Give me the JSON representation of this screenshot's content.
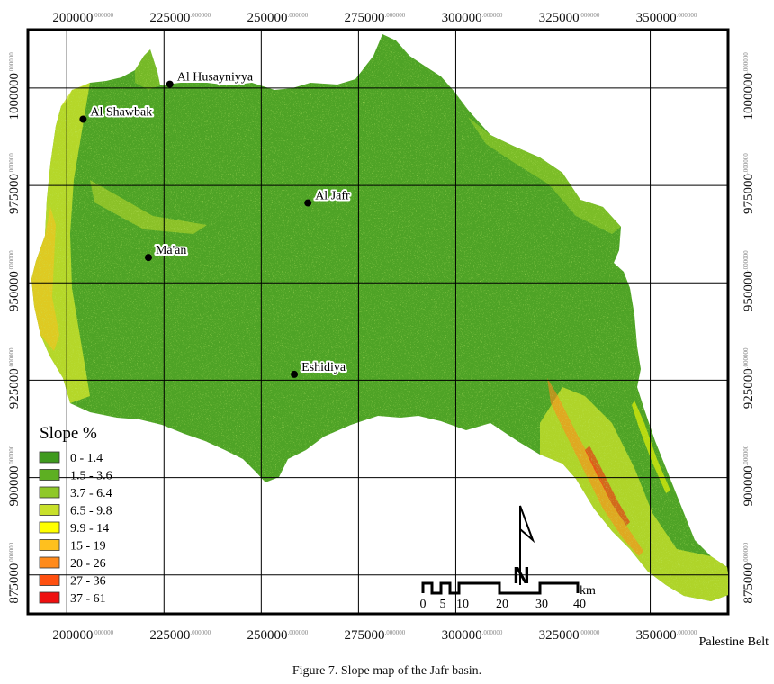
{
  "map": {
    "x_ticks": [
      200000,
      225000,
      250000,
      275000,
      300000,
      325000,
      350000
    ],
    "y_ticks": [
      1000000,
      975000,
      950000,
      925000,
      900000,
      875000
    ],
    "x_tick_labels": [
      "200000",
      "225000",
      "250000",
      "275000",
      "300000",
      "325000",
      "350000"
    ],
    "y_tick_labels": [
      "1000000",
      "975000",
      "950000",
      "925000",
      "900000",
      "875000"
    ],
    "tick_superscript": ".000000",
    "places": [
      {
        "name": "Al Husayniyya",
        "x": 226500,
        "y": 1001000
      },
      {
        "name": "Al Shawbak",
        "x": 204200,
        "y": 992000
      },
      {
        "name": "Al Jafr",
        "x": 262000,
        "y": 970500
      },
      {
        "name": "Ma'an",
        "x": 221000,
        "y": 956500
      },
      {
        "name": "Eshidiya",
        "x": 258500,
        "y": 926500
      }
    ],
    "colors": {
      "background": "#ffffff",
      "grid": "#000000",
      "frame": "#000000",
      "basin_main": "#4ea326"
    }
  },
  "legend": {
    "title": "Slope %",
    "classes": [
      {
        "label": "0 - 1.4",
        "color": "#3f9a1e"
      },
      {
        "label": "1.5 - 3.6",
        "color": "#5daf22"
      },
      {
        "label": "3.7 - 6.4",
        "color": "#8fc828"
      },
      {
        "label": "6.5 - 9.8",
        "color": "#c8e02a"
      },
      {
        "label": "9.9 - 14",
        "color": "#ffff00"
      },
      {
        "label": "15 - 19",
        "color": "#ffc01e"
      },
      {
        "label": "20 - 26",
        "color": "#ff8a1a"
      },
      {
        "label": "27 - 36",
        "color": "#ff5010"
      },
      {
        "label": "37 - 61",
        "color": "#ee1010"
      }
    ]
  },
  "scale_bar": {
    "unit": "km",
    "labels": [
      "0",
      "5",
      "10",
      "20",
      "30",
      "40"
    ]
  },
  "north_arrow": {
    "label": "N"
  },
  "corner_text": "Palestine Belt",
  "caption": "Figure 7. Slope map of the Jafr basin."
}
